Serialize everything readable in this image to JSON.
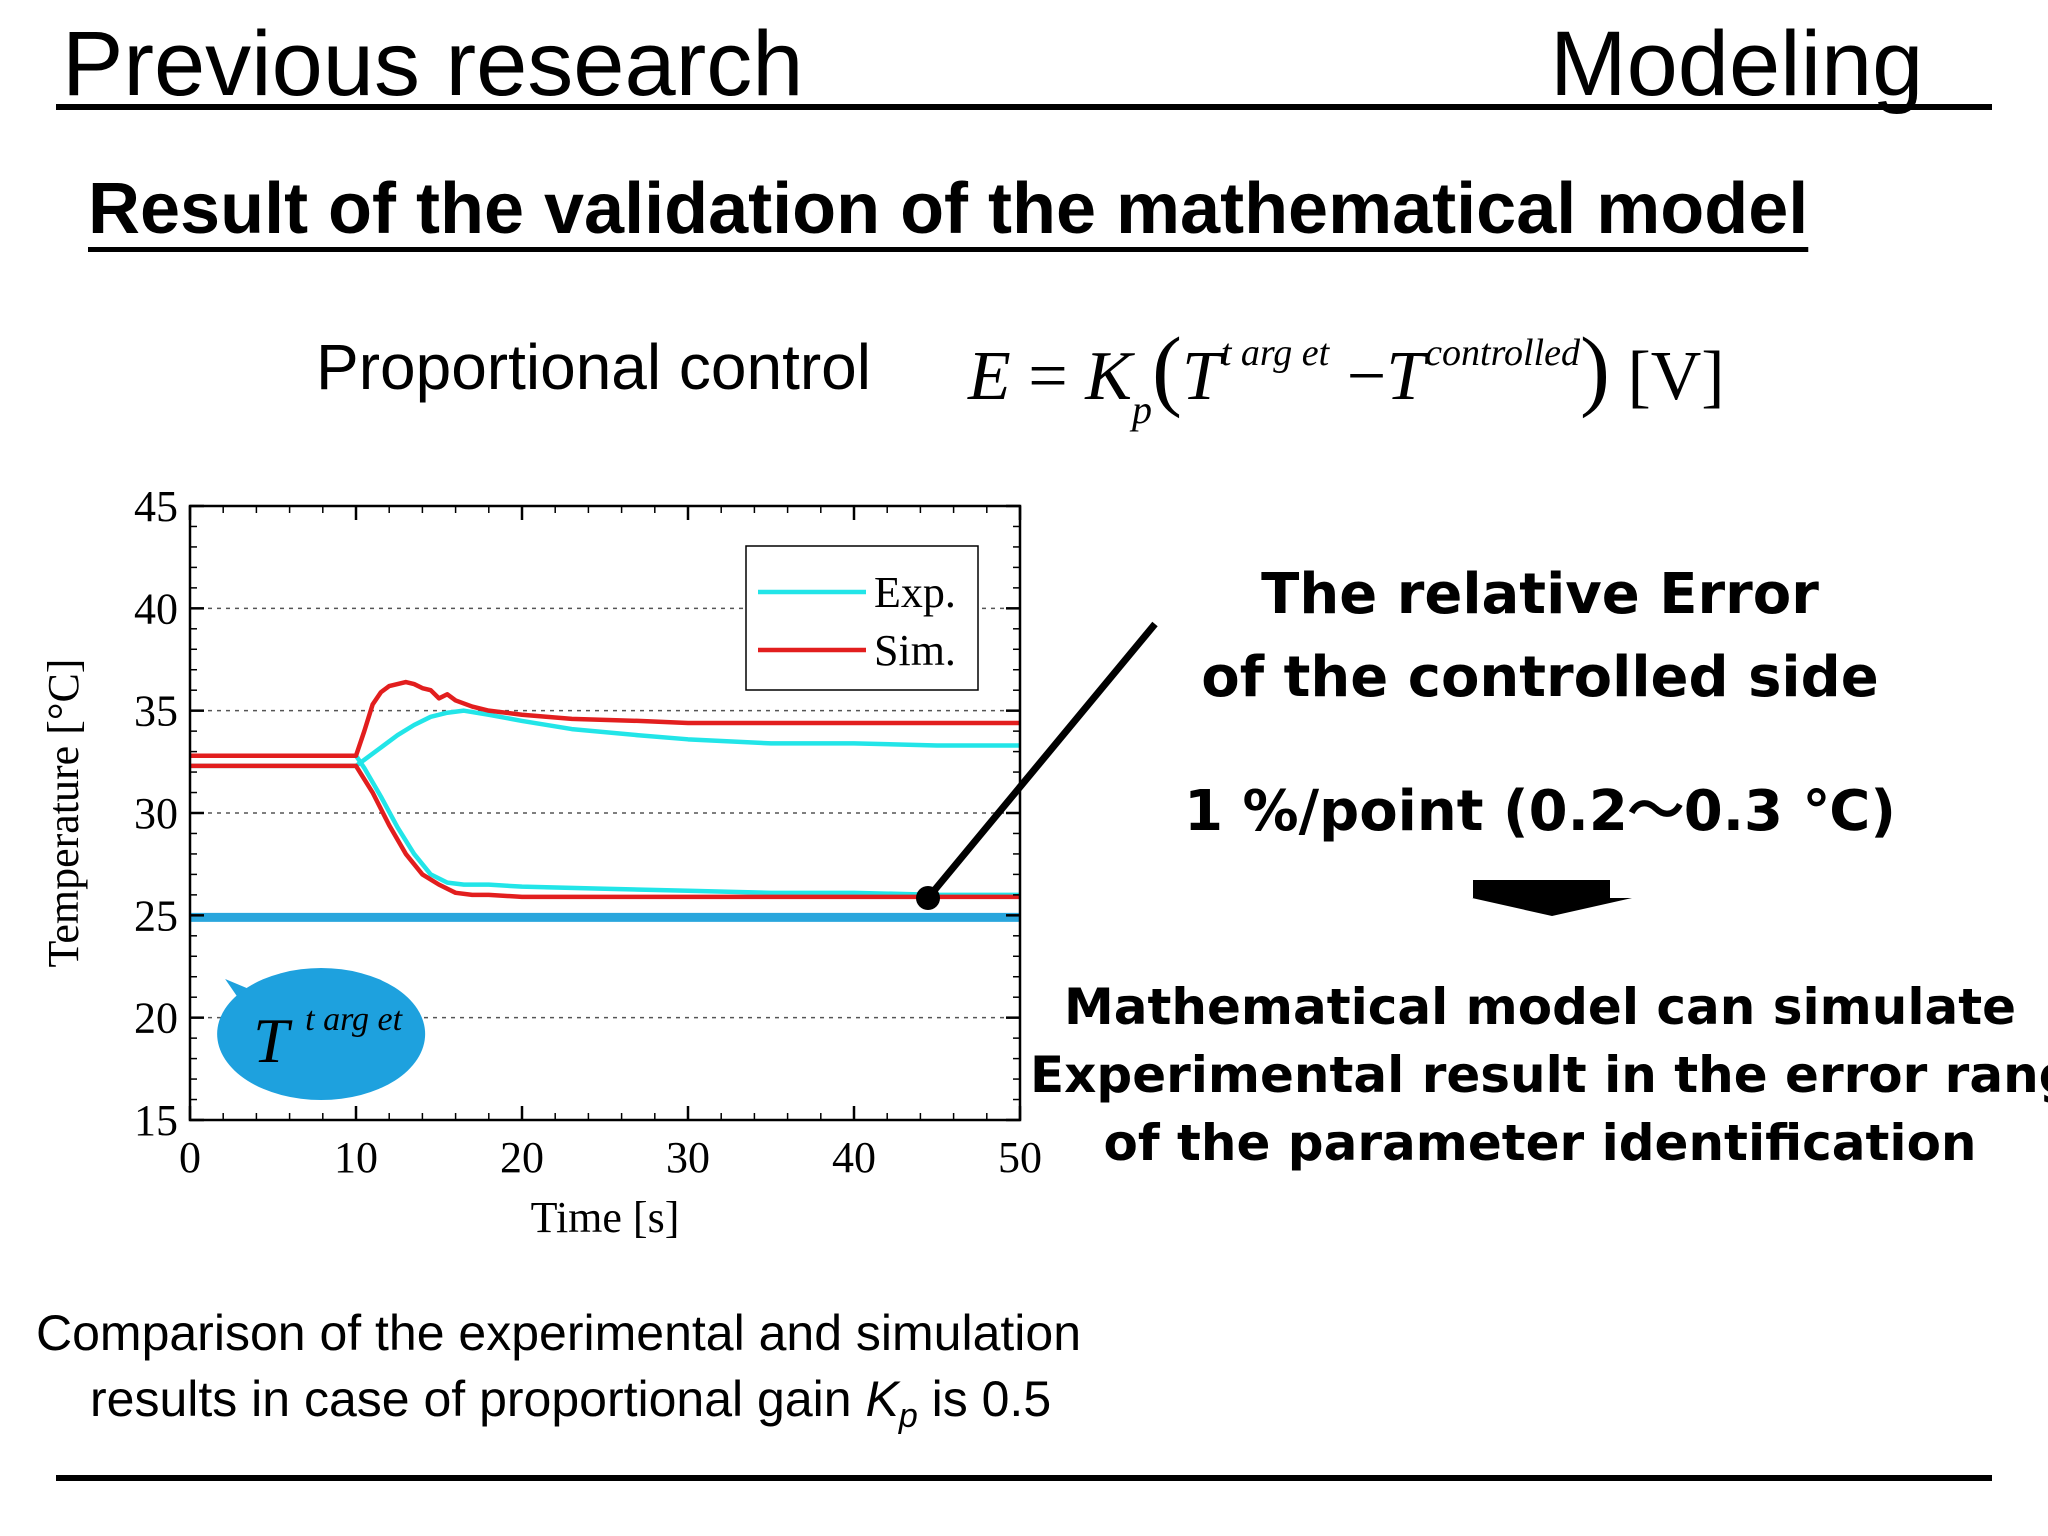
{
  "header": {
    "left_title": "Previous research",
    "right_title": "Modeling"
  },
  "subtitle": "Result of the validation of the mathematical model",
  "formula": {
    "label": "Proportional control",
    "E": "E",
    "equals": "=",
    "K": "K",
    "K_sub": "p",
    "T1": "T",
    "T1_sup": "t arg et",
    "minus": "−",
    "T2": "T",
    "T2_sup": "controlled",
    "unit": "[V]"
  },
  "chart_data": {
    "type": "line",
    "xlabel": "Time [s]",
    "ylabel": "Temperature [°C]",
    "xlim": [
      0,
      50
    ],
    "ylim": [
      15,
      45
    ],
    "xticks": [
      0,
      10,
      20,
      30,
      40,
      50
    ],
    "yticks": [
      15,
      20,
      25,
      30,
      35,
      40,
      45
    ],
    "grid": "horizontal dotted",
    "legend_position": "top-right",
    "series": [
      {
        "name": "Exp.",
        "color": "#22e5e8",
        "curve": "upper",
        "x": [
          0,
          10,
          10.5,
          11.5,
          12.5,
          13.5,
          14.5,
          15.5,
          16.5,
          18,
          20,
          23,
          27,
          30,
          35,
          40,
          45,
          50
        ],
        "y": [
          32.3,
          32.3,
          32.6,
          33.2,
          33.8,
          34.3,
          34.7,
          34.9,
          35.0,
          34.8,
          34.5,
          34.1,
          33.8,
          33.6,
          33.4,
          33.4,
          33.3,
          33.3
        ]
      },
      {
        "name": "Exp.",
        "color": "#22e5e8",
        "curve": "lower",
        "x": [
          0,
          10,
          10.5,
          11.5,
          12.5,
          13.5,
          14.5,
          15.5,
          16.5,
          18,
          20,
          25,
          30,
          35,
          40,
          45,
          50
        ],
        "y": [
          32.8,
          32.8,
          32.2,
          30.8,
          29.3,
          28.0,
          27.0,
          26.6,
          26.5,
          26.5,
          26.4,
          26.3,
          26.2,
          26.1,
          26.1,
          26.0,
          26.0
        ]
      },
      {
        "name": "Sim.",
        "color": "#e21e1e",
        "curve": "upper",
        "x": [
          0,
          10,
          10.5,
          11,
          11.5,
          12,
          13,
          13.5,
          14,
          14.5,
          15,
          15.5,
          16,
          17,
          18,
          20,
          23,
          27,
          30,
          35,
          40,
          45,
          50
        ],
        "y": [
          32.8,
          32.8,
          34.0,
          35.3,
          35.9,
          36.2,
          36.4,
          36.3,
          36.1,
          36.0,
          35.6,
          35.8,
          35.5,
          35.2,
          35.0,
          34.8,
          34.6,
          34.5,
          34.4,
          34.4,
          34.4,
          34.4,
          34.4
        ]
      },
      {
        "name": "Sim.",
        "color": "#e21e1e",
        "curve": "lower",
        "x": [
          0,
          10,
          11,
          12,
          13,
          14,
          15,
          16,
          17,
          18,
          20,
          25,
          30,
          40,
          50
        ],
        "y": [
          32.3,
          32.3,
          31.0,
          29.4,
          28.0,
          27.0,
          26.5,
          26.1,
          26.0,
          26.0,
          25.9,
          25.9,
          25.9,
          25.9,
          25.9
        ]
      },
      {
        "name": "",
        "color": "#29a6dd",
        "curve": "target",
        "x": [
          0,
          50
        ],
        "y": [
          24.9,
          24.9
        ]
      }
    ],
    "annotations": {
      "target_bubble": {
        "T": "T",
        "sup": "t arg et"
      },
      "pointer_marker": {
        "x": 44.2,
        "y": 26.0
      }
    }
  },
  "right_panel": {
    "line1": "The relative Error",
    "line2": "of the controlled side",
    "line3": "1 %/point (0.2～0.3 ℃)",
    "conclusion1": "Mathematical model can simulate",
    "conclusion2": "Experimental result in the error range",
    "conclusion3": "of the parameter identification"
  },
  "caption": {
    "line1": "Comparison of the experimental and simulation",
    "line2_prefix": "results in case of proportional gain ",
    "K": "K",
    "K_sub": "p",
    "line2_suffix": " is 0.5"
  }
}
